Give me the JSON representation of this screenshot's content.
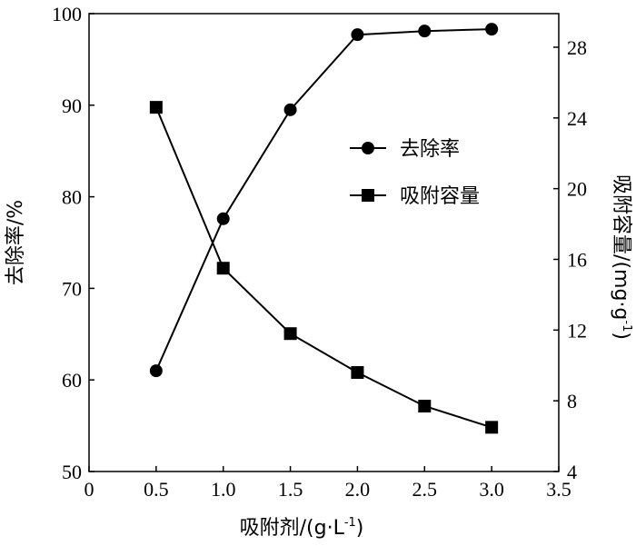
{
  "chart_data": {
    "type": "line",
    "x_axis": {
      "label": "吸附剂/(g·L",
      "label_sup": "-1",
      "label_end": ")",
      "ticks": [
        "0",
        "0.5",
        "1.0",
        "1.5",
        "2.0",
        "2.5",
        "3.0",
        "3.5"
      ],
      "range": [
        0,
        3.5
      ]
    },
    "y_left": {
      "label": "去除率/%",
      "ticks": [
        "50",
        "60",
        "70",
        "80",
        "90",
        "100"
      ],
      "range": [
        50,
        100
      ]
    },
    "y_right": {
      "label": "吸附容量/(mg·g",
      "label_sup": "-1",
      "label_end": ")",
      "ticks": [
        "4",
        "8",
        "12",
        "16",
        "20",
        "24",
        "28"
      ],
      "range": [
        4,
        29.9
      ]
    },
    "series": [
      {
        "name": "去除率",
        "marker": "circle",
        "axis": "left",
        "x": [
          0.5,
          1.0,
          1.5,
          2.0,
          2.5,
          3.0
        ],
        "y": [
          61.0,
          77.6,
          89.5,
          97.7,
          98.1,
          98.3
        ]
      },
      {
        "name": "吸附容量",
        "marker": "square",
        "axis": "right",
        "x": [
          0.5,
          1.0,
          1.5,
          2.0,
          2.5,
          3.0
        ],
        "y": [
          24.6,
          15.5,
          11.8,
          9.6,
          7.7,
          6.5
        ]
      }
    ],
    "legend_position": "upper-right",
    "grid": false,
    "colors": {
      "line": "#000000",
      "marker": "#000000"
    }
  }
}
